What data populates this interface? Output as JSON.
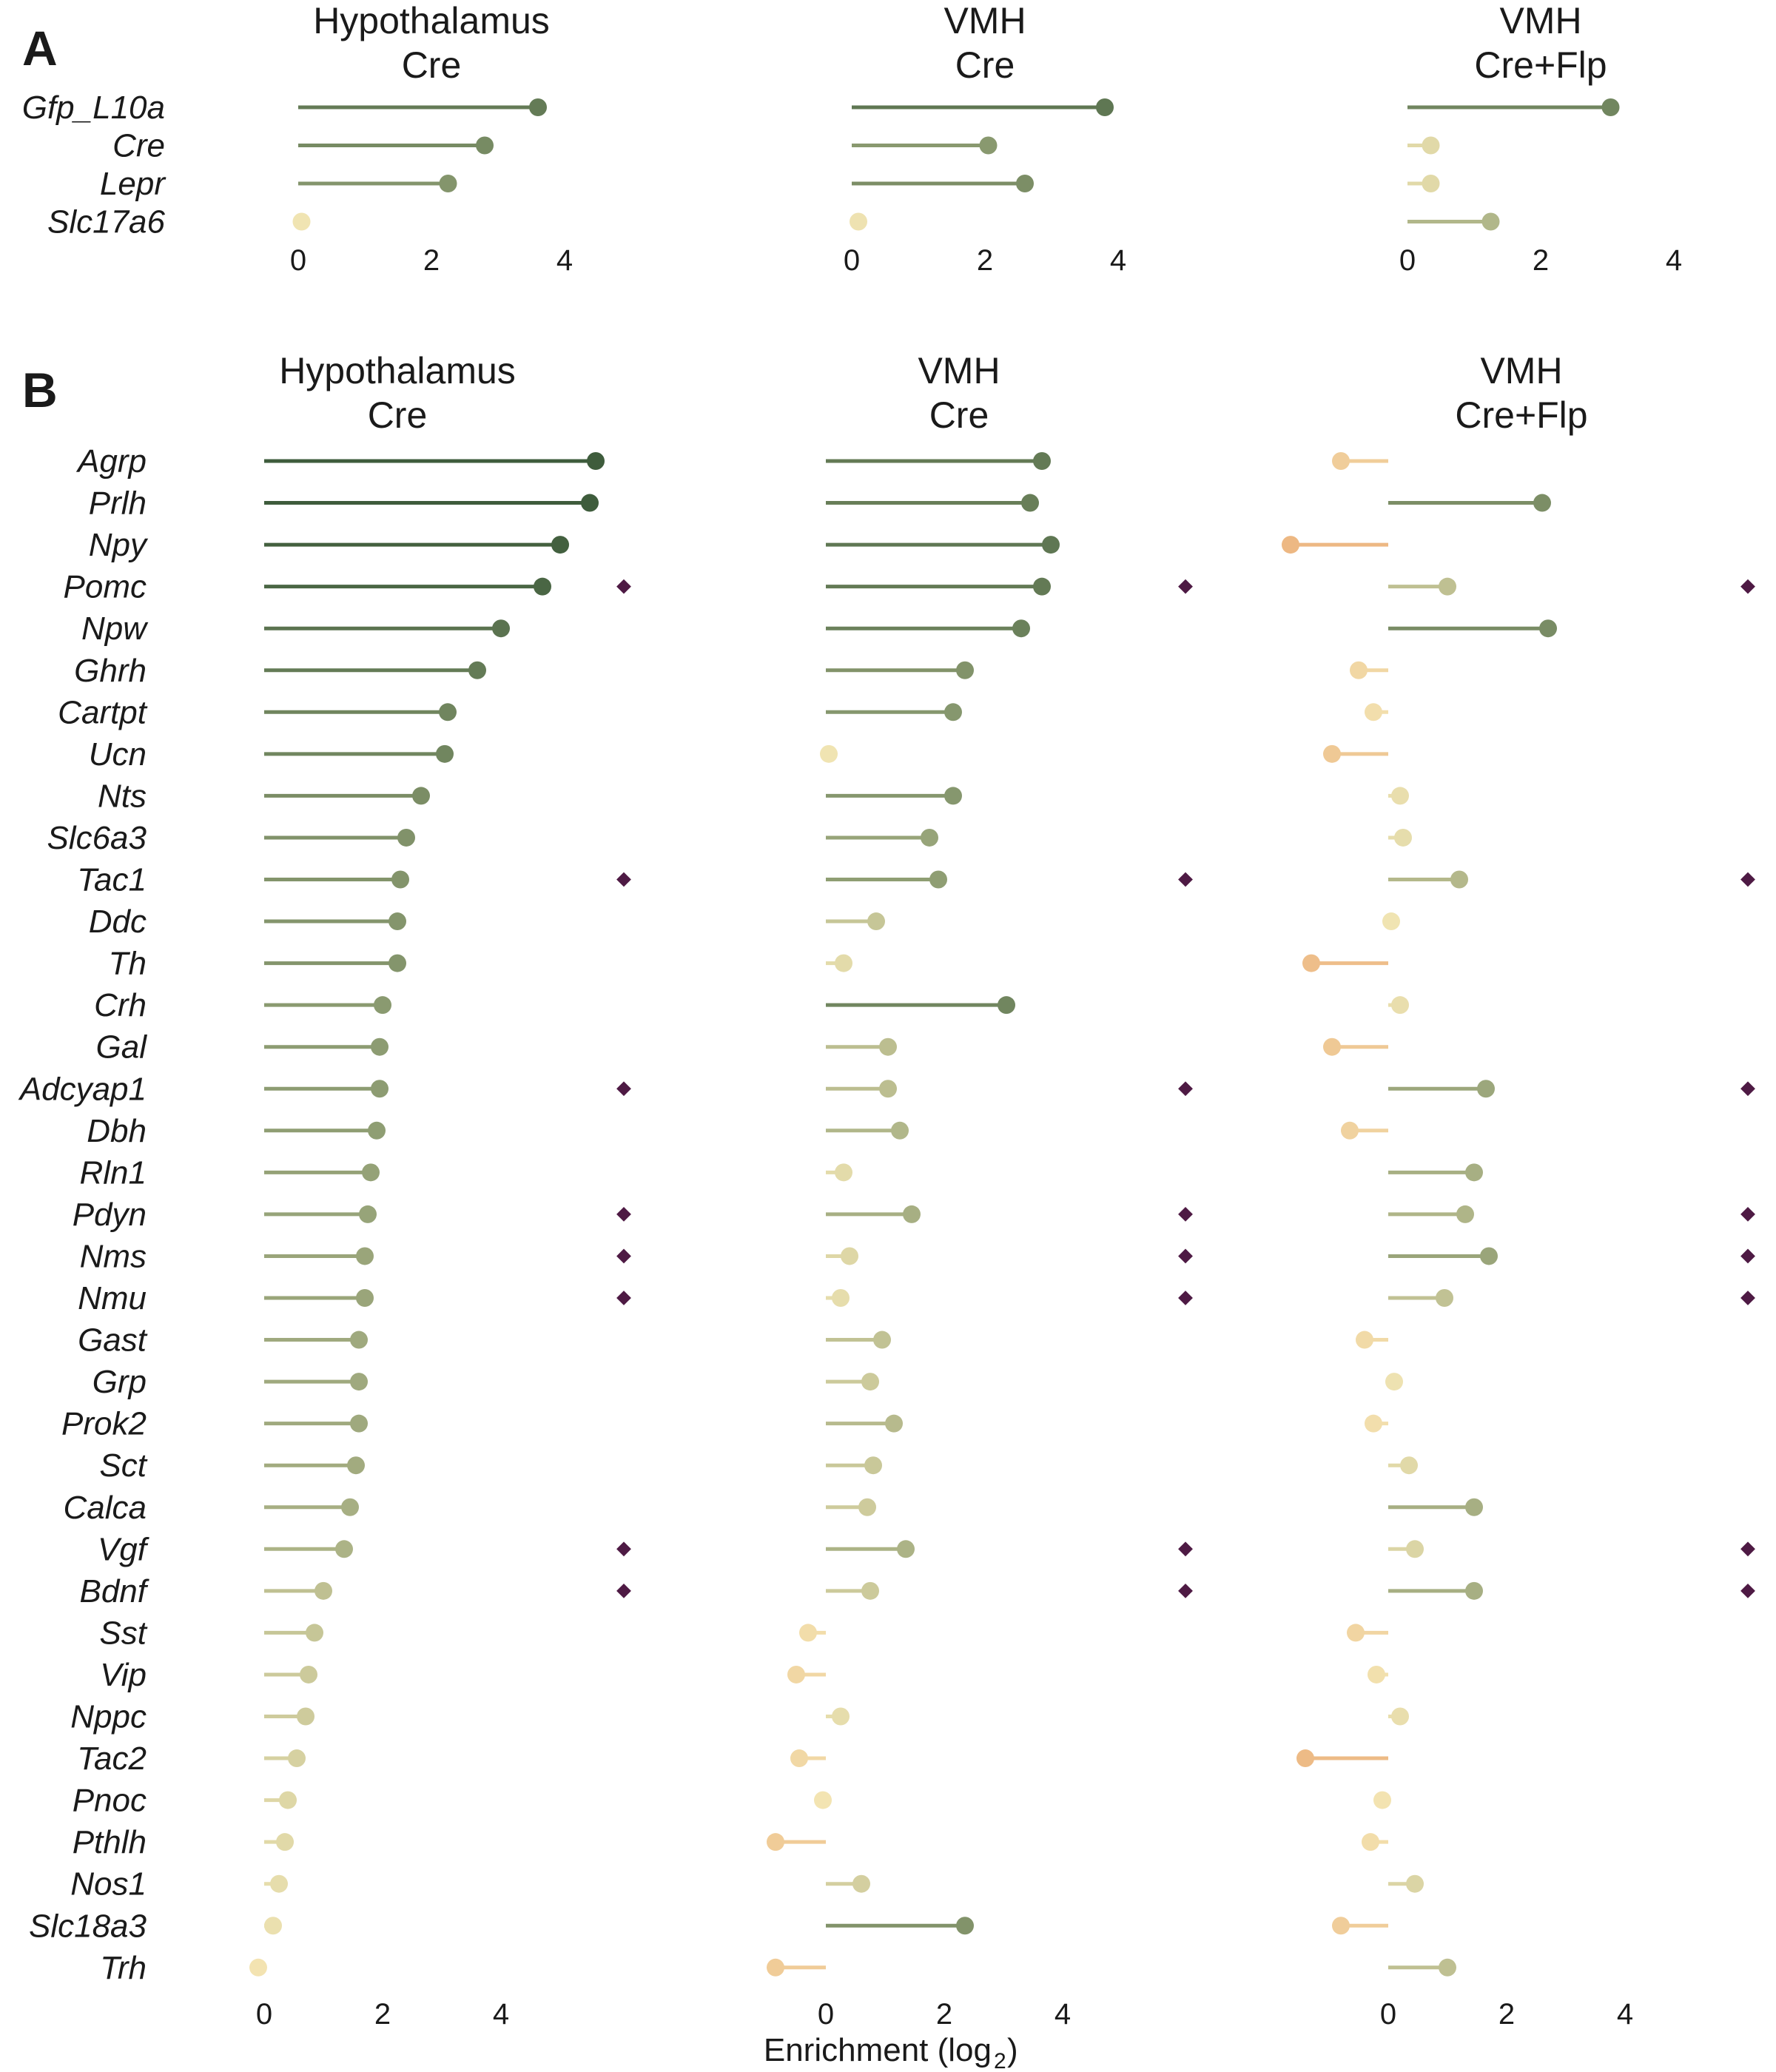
{
  "figure": {
    "panel_labels": [
      "A",
      "B"
    ],
    "x_axis_label": "Enrichment (log",
    "x_axis_label_sub": "2",
    "x_axis_label_end": ")"
  },
  "colors": {
    "strong_positive": "#3e5c3c",
    "mid_positive": "#8a9a70",
    "near_zero": "#f3e6b4",
    "negative": "#edb883",
    "marker": "#4e1a44"
  },
  "chart_data": [
    {
      "type": "lollipop",
      "panel": "A",
      "genes": [
        "Gfp_L10a",
        "Cre",
        "Lepr",
        "Slc17a6"
      ],
      "xlim": [
        0,
        4.5
      ],
      "xticks": [
        0,
        2,
        4
      ],
      "grid": false,
      "facets": [
        {
          "title": [
            "Hypothalamus",
            "Cre"
          ],
          "values": [
            3.6,
            2.8,
            2.25,
            0.05
          ]
        },
        {
          "title": [
            "VMH",
            "Cre"
          ],
          "values": [
            3.8,
            2.05,
            2.6,
            0.1
          ]
        },
        {
          "title": [
            "VMH",
            "Cre+Flp"
          ],
          "values": [
            3.05,
            0.35,
            0.35,
            1.25
          ]
        }
      ]
    },
    {
      "type": "lollipop",
      "panel": "B",
      "genes": [
        "Agrp",
        "Prlh",
        "Npy",
        "Pomc",
        "Npw",
        "Ghrh",
        "Cartpt",
        "Ucn",
        "Nts",
        "Slc6a3",
        "Tac1",
        "Ddc",
        "Th",
        "Crh",
        "Gal",
        "Adcyap1",
        "Dbh",
        "Rln1",
        "Pdyn",
        "Nms",
        "Nmu",
        "Gast",
        "Grp",
        "Prok2",
        "Sct",
        "Calca",
        "Vgf",
        "Bdnf",
        "Sst",
        "Vip",
        "Nppc",
        "Tac2",
        "Pnoc",
        "Pthlh",
        "Nos1",
        "Slc18a3",
        "Trh"
      ],
      "xlim": [
        -1.5,
        6
      ],
      "xticks": [
        0,
        2,
        4
      ],
      "grid": false,
      "marked_genes": [
        "Pomc",
        "Tac1",
        "Adcyap1",
        "Pdyn",
        "Nms",
        "Nmu",
        "Vgf",
        "Bdnf"
      ],
      "facets": [
        {
          "title": [
            "Hypothalamus",
            "Cre"
          ],
          "values": [
            5.6,
            5.5,
            5.0,
            4.7,
            4.0,
            3.6,
            3.1,
            3.05,
            2.65,
            2.4,
            2.3,
            2.25,
            2.25,
            2.0,
            1.95,
            1.95,
            1.9,
            1.8,
            1.75,
            1.7,
            1.7,
            1.6,
            1.6,
            1.6,
            1.55,
            1.45,
            1.35,
            1.0,
            0.85,
            0.75,
            0.7,
            0.55,
            0.4,
            0.35,
            0.25,
            0.15,
            -0.1
          ]
        },
        {
          "title": [
            "VMH",
            "Cre"
          ],
          "values": [
            3.65,
            3.45,
            3.8,
            3.65,
            3.3,
            2.35,
            2.15,
            0.05,
            2.15,
            1.75,
            1.9,
            0.85,
            0.3,
            3.05,
            1.05,
            1.05,
            1.25,
            0.3,
            1.45,
            0.4,
            0.25,
            0.95,
            0.75,
            1.15,
            0.8,
            0.7,
            1.35,
            0.75,
            -0.3,
            -0.5,
            0.25,
            -0.45,
            -0.05,
            -0.85,
            0.6,
            2.35,
            -0.85
          ]
        },
        {
          "title": [
            "VMH",
            "Cre+Flp"
          ],
          "values": [
            -0.8,
            2.6,
            -1.65,
            1.0,
            2.7,
            -0.5,
            -0.25,
            -0.95,
            0.2,
            0.25,
            1.2,
            0.05,
            -1.3,
            0.2,
            -0.95,
            1.65,
            -0.65,
            1.45,
            1.3,
            1.7,
            0.95,
            -0.4,
            0.1,
            -0.25,
            0.35,
            1.45,
            0.45,
            1.45,
            -0.55,
            -0.2,
            0.2,
            -1.4,
            -0.1,
            -0.3,
            0.45,
            -0.8,
            1.0
          ]
        }
      ]
    }
  ]
}
